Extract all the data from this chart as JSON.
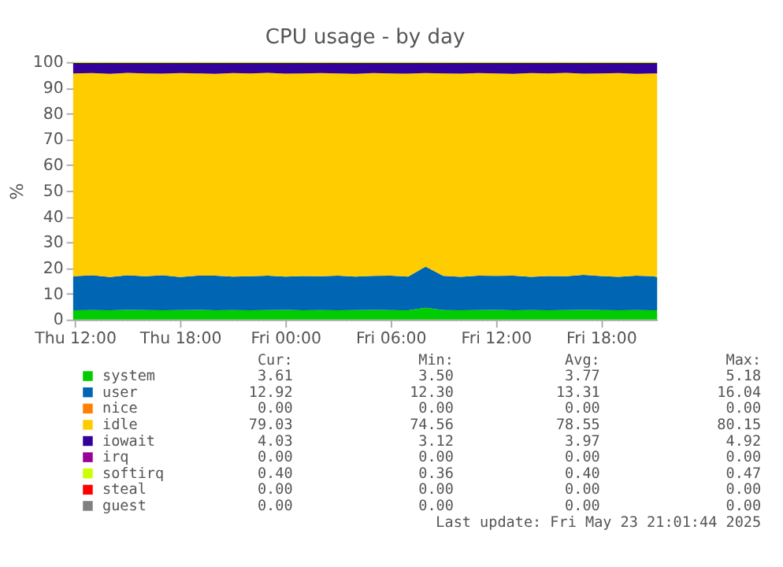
{
  "chart_data": {
    "type": "area",
    "stacked": true,
    "title": "CPU usage - by day",
    "ylabel": "%",
    "x": [
      "2025-05-22T11:54",
      "2025-05-22T13:00",
      "2025-05-22T14:00",
      "2025-05-22T15:00",
      "2025-05-22T16:00",
      "2025-05-22T17:00",
      "2025-05-22T18:00",
      "2025-05-22T19:00",
      "2025-05-22T20:00",
      "2025-05-22T21:00",
      "2025-05-22T22:00",
      "2025-05-22T23:00",
      "2025-05-23T00:00",
      "2025-05-23T01:00",
      "2025-05-23T02:00",
      "2025-05-23T03:00",
      "2025-05-23T04:00",
      "2025-05-23T05:00",
      "2025-05-23T06:00",
      "2025-05-23T07:00",
      "2025-05-23T08:00",
      "2025-05-23T09:00",
      "2025-05-23T10:00",
      "2025-05-23T11:00",
      "2025-05-23T12:00",
      "2025-05-23T13:00",
      "2025-05-23T14:00",
      "2025-05-23T15:00",
      "2025-05-23T16:00",
      "2025-05-23T17:00",
      "2025-05-23T18:00",
      "2025-05-23T19:00",
      "2025-05-23T20:00",
      "2025-05-23T21:00",
      "2025-05-23T21:12"
    ],
    "xlim": [
      "2025-05-22T11:54",
      "2025-05-23T21:12"
    ],
    "xticks": [
      {
        "value": "2025-05-22T12:00",
        "label": "Thu 12:00"
      },
      {
        "value": "2025-05-22T18:00",
        "label": "Thu 18:00"
      },
      {
        "value": "2025-05-23T00:00",
        "label": "Fri 00:00"
      },
      {
        "value": "2025-05-23T06:00",
        "label": "Fri 06:00"
      },
      {
        "value": "2025-05-23T12:00",
        "label": "Fri 12:00"
      },
      {
        "value": "2025-05-23T18:00",
        "label": "Fri 18:00"
      }
    ],
    "ylim": [
      0,
      100
    ],
    "yticks": [
      0,
      10,
      20,
      30,
      40,
      50,
      60,
      70,
      80,
      90,
      100
    ],
    "grid": true,
    "legend": "bottom",
    "series": [
      {
        "name": "system",
        "color": "#00cc00",
        "values": [
          3.6,
          3.7,
          3.6,
          3.8,
          3.7,
          3.6,
          3.7,
          3.8,
          3.6,
          3.7,
          3.6,
          3.7,
          3.8,
          3.6,
          3.7,
          3.6,
          3.7,
          3.8,
          3.7,
          3.6,
          4.6,
          3.7,
          3.6,
          3.7,
          3.8,
          3.6,
          3.7,
          3.6,
          3.7,
          3.8,
          3.7,
          3.6,
          3.7,
          3.6,
          3.6
        ]
      },
      {
        "name": "user",
        "color": "#0066b3",
        "values": [
          13.2,
          13.5,
          12.9,
          13.4,
          13.1,
          13.6,
          12.8,
          13.3,
          13.5,
          13.0,
          13.2,
          13.4,
          12.9,
          13.3,
          13.1,
          13.5,
          13.0,
          13.2,
          13.4,
          13.1,
          16.0,
          13.3,
          13.0,
          13.4,
          13.2,
          13.5,
          12.9,
          13.3,
          13.1,
          13.6,
          13.2,
          13.0,
          13.4,
          13.2,
          12.9
        ]
      },
      {
        "name": "nice",
        "color": "#ff8000",
        "values": [
          null,
          null,
          null,
          null,
          null,
          null,
          null,
          null,
          null,
          null,
          null,
          null,
          null,
          null,
          null,
          null,
          null,
          null,
          null,
          null,
          null,
          null,
          null,
          null,
          null,
          null,
          null,
          null,
          null,
          null,
          null,
          null,
          null,
          null,
          null
        ]
      },
      {
        "name": "idle",
        "color": "#ffcc00",
        "values": [
          78.8,
          78.5,
          78.9,
          78.6,
          78.8,
          78.3,
          79.2,
          78.5,
          78.3,
          79.0,
          78.8,
          78.7,
          78.8,
          78.7,
          78.9,
          78.5,
          78.7,
          78.7,
          78.5,
          78.8,
          75.1,
          78.6,
          78.9,
          78.6,
          78.6,
          78.3,
          79.1,
          78.7,
          79.0,
          78.1,
          78.7,
          79.1,
          78.3,
          78.8,
          79.1
        ]
      },
      {
        "name": "iowait",
        "color": "#330099",
        "values": [
          4.0,
          3.9,
          4.2,
          3.8,
          4.0,
          4.1,
          3.9,
          4.0,
          4.2,
          3.9,
          4.0,
          3.8,
          4.1,
          4.0,
          3.9,
          4.0,
          4.2,
          3.9,
          4.0,
          4.1,
          3.9,
          4.0,
          4.1,
          3.9,
          4.0,
          4.2,
          3.9,
          4.0,
          3.8,
          4.1,
          4.0,
          3.9,
          4.2,
          4.0,
          4.0
        ]
      },
      {
        "name": "irq",
        "color": "#990099",
        "values": [
          null,
          null,
          null,
          null,
          null,
          null,
          null,
          null,
          null,
          null,
          null,
          null,
          null,
          null,
          null,
          null,
          null,
          null,
          null,
          null,
          null,
          null,
          null,
          null,
          null,
          null,
          null,
          null,
          null,
          null,
          null,
          null,
          null,
          null,
          null
        ]
      },
      {
        "name": "softirq",
        "color": "#ccff00",
        "values": [
          0.4,
          0.4,
          0.4,
          0.4,
          0.4,
          0.4,
          0.4,
          0.4,
          0.4,
          0.4,
          0.4,
          0.4,
          0.4,
          0.4,
          0.4,
          0.4,
          0.4,
          0.4,
          0.4,
          0.4,
          0.4,
          0.4,
          0.4,
          0.4,
          0.4,
          0.4,
          0.4,
          0.4,
          0.4,
          0.4,
          0.4,
          0.4,
          0.4,
          0.4,
          0.4
        ]
      },
      {
        "name": "steal",
        "color": "#ff0000",
        "values": [
          null,
          null,
          null,
          null,
          null,
          null,
          null,
          null,
          null,
          null,
          null,
          null,
          null,
          null,
          null,
          null,
          null,
          null,
          null,
          null,
          null,
          null,
          null,
          null,
          null,
          null,
          null,
          null,
          null,
          null,
          null,
          null,
          null,
          null,
          null
        ]
      },
      {
        "name": "guest",
        "color": "#808080",
        "values": [
          null,
          null,
          null,
          null,
          null,
          null,
          null,
          null,
          null,
          null,
          null,
          null,
          null,
          null,
          null,
          null,
          null,
          null,
          null,
          null,
          null,
          null,
          null,
          null,
          null,
          null,
          null,
          null,
          null,
          null,
          null,
          null,
          null,
          null,
          null
        ]
      }
    ],
    "annotations": [
      "Cur:",
      "Min:",
      "Avg:",
      "Max:",
      "3.61",
      "3.50",
      "3.77",
      "5.18",
      "12.92",
      "12.30",
      "13.31",
      "16.04",
      "0.00",
      "0.00",
      "0.00",
      "0.00",
      "79.03",
      "74.56",
      "78.55",
      "80.15",
      "4.03",
      "3.12",
      "3.97",
      "4.92",
      "0.00",
      "0.00",
      "0.00",
      "0.00",
      "0.40",
      "0.36",
      "0.40",
      "0.47",
      "0.00",
      "0.00",
      "0.00",
      "0.00",
      "0.00",
      "0.00",
      "0.00",
      "0.00",
      "Last update: Fri May 23 21:01:44 2025"
    ]
  }
}
